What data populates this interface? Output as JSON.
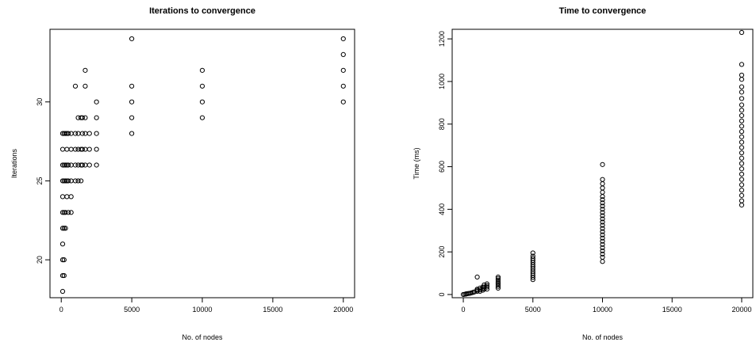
{
  "chart_data": [
    {
      "type": "scatter",
      "title": "Iterations to convergence",
      "xlabel": "No. of nodes",
      "ylabel": "Iterations",
      "xlim": [
        -800,
        20800
      ],
      "ylim": [
        17.6,
        34.6
      ],
      "xticks": [
        0,
        5000,
        10000,
        15000,
        20000
      ],
      "yticks": [
        20,
        25,
        30
      ],
      "grid": false,
      "points": [
        [
          100,
          18
        ],
        [
          100,
          19
        ],
        [
          100,
          20
        ],
        [
          100,
          21
        ],
        [
          100,
          22
        ],
        [
          100,
          23
        ],
        [
          100,
          24
        ],
        [
          100,
          25
        ],
        [
          100,
          26
        ],
        [
          100,
          27
        ],
        [
          100,
          28
        ],
        [
          200,
          19
        ],
        [
          200,
          20
        ],
        [
          200,
          22
        ],
        [
          200,
          23
        ],
        [
          200,
          25
        ],
        [
          200,
          26
        ],
        [
          200,
          28
        ],
        [
          300,
          22
        ],
        [
          300,
          23
        ],
        [
          300,
          25
        ],
        [
          300,
          26
        ],
        [
          300,
          28
        ],
        [
          400,
          24
        ],
        [
          400,
          25
        ],
        [
          400,
          26
        ],
        [
          400,
          27
        ],
        [
          400,
          28
        ],
        [
          500,
          23
        ],
        [
          500,
          25
        ],
        [
          500,
          26
        ],
        [
          500,
          28
        ],
        [
          700,
          23
        ],
        [
          700,
          24
        ],
        [
          700,
          25
        ],
        [
          700,
          26
        ],
        [
          700,
          27
        ],
        [
          700,
          28
        ],
        [
          1000,
          25
        ],
        [
          1000,
          26
        ],
        [
          1000,
          27
        ],
        [
          1000,
          28
        ],
        [
          1000,
          31
        ],
        [
          1200,
          25
        ],
        [
          1200,
          26
        ],
        [
          1200,
          27
        ],
        [
          1200,
          28
        ],
        [
          1200,
          29
        ],
        [
          1400,
          25
        ],
        [
          1400,
          26
        ],
        [
          1400,
          27
        ],
        [
          1400,
          29
        ],
        [
          1500,
          26
        ],
        [
          1500,
          27
        ],
        [
          1500,
          28
        ],
        [
          1500,
          29
        ],
        [
          1700,
          26
        ],
        [
          1700,
          27
        ],
        [
          1700,
          28
        ],
        [
          1700,
          29
        ],
        [
          1700,
          31
        ],
        [
          1700,
          32
        ],
        [
          2000,
          26
        ],
        [
          2000,
          27
        ],
        [
          2000,
          28
        ],
        [
          2500,
          26
        ],
        [
          2500,
          27
        ],
        [
          2500,
          28
        ],
        [
          2500,
          29
        ],
        [
          2500,
          30
        ],
        [
          5000,
          28
        ],
        [
          5000,
          29
        ],
        [
          5000,
          30
        ],
        [
          5000,
          31
        ],
        [
          5000,
          34
        ],
        [
          10000,
          29
        ],
        [
          10000,
          30
        ],
        [
          10000,
          31
        ],
        [
          10000,
          32
        ],
        [
          20000,
          30
        ],
        [
          20000,
          31
        ],
        [
          20000,
          32
        ],
        [
          20000,
          33
        ],
        [
          20000,
          34
        ]
      ]
    },
    {
      "type": "scatter",
      "title": "Time to convergence",
      "xlabel": "No. of nodes",
      "ylabel": "Time (ms)",
      "xlim": [
        -800,
        20800
      ],
      "ylim": [
        -15,
        1245
      ],
      "xticks": [
        0,
        5000,
        10000,
        15000,
        20000
      ],
      "yticks": [
        0,
        200,
        400,
        600,
        800,
        1000,
        1200
      ],
      "grid": false,
      "points": [
        [
          0,
          0
        ],
        [
          100,
          1
        ],
        [
          200,
          2
        ],
        [
          200,
          3
        ],
        [
          300,
          4
        ],
        [
          400,
          5
        ],
        [
          500,
          6
        ],
        [
          600,
          8
        ],
        [
          700,
          10
        ],
        [
          800,
          12
        ],
        [
          1000,
          15
        ],
        [
          1000,
          20
        ],
        [
          1000,
          25
        ],
        [
          1000,
          82
        ],
        [
          1200,
          15
        ],
        [
          1200,
          22
        ],
        [
          1200,
          30
        ],
        [
          1400,
          20
        ],
        [
          1400,
          28
        ],
        [
          1400,
          35
        ],
        [
          1500,
          25
        ],
        [
          1500,
          35
        ],
        [
          1500,
          45
        ],
        [
          1700,
          25
        ],
        [
          1700,
          35
        ],
        [
          1700,
          42
        ],
        [
          1700,
          50
        ],
        [
          2500,
          30
        ],
        [
          2500,
          38
        ],
        [
          2500,
          45
        ],
        [
          2500,
          52
        ],
        [
          2500,
          60
        ],
        [
          2500,
          68
        ],
        [
          2500,
          75
        ],
        [
          2500,
          82
        ],
        [
          5000,
          70
        ],
        [
          5000,
          80
        ],
        [
          5000,
          90
        ],
        [
          5000,
          100
        ],
        [
          5000,
          110
        ],
        [
          5000,
          120
        ],
        [
          5000,
          130
        ],
        [
          5000,
          140
        ],
        [
          5000,
          150
        ],
        [
          5000,
          160
        ],
        [
          5000,
          170
        ],
        [
          5000,
          180
        ],
        [
          5000,
          195
        ],
        [
          10000,
          155
        ],
        [
          10000,
          175
        ],
        [
          10000,
          190
        ],
        [
          10000,
          205
        ],
        [
          10000,
          220
        ],
        [
          10000,
          235
        ],
        [
          10000,
          250
        ],
        [
          10000,
          265
        ],
        [
          10000,
          280
        ],
        [
          10000,
          295
        ],
        [
          10000,
          310
        ],
        [
          10000,
          325
        ],
        [
          10000,
          340
        ],
        [
          10000,
          355
        ],
        [
          10000,
          370
        ],
        [
          10000,
          385
        ],
        [
          10000,
          400
        ],
        [
          10000,
          415
        ],
        [
          10000,
          430
        ],
        [
          10000,
          445
        ],
        [
          10000,
          460
        ],
        [
          10000,
          480
        ],
        [
          10000,
          500
        ],
        [
          10000,
          520
        ],
        [
          10000,
          540
        ],
        [
          10000,
          610
        ],
        [
          20000,
          420
        ],
        [
          20000,
          440
        ],
        [
          20000,
          465
        ],
        [
          20000,
          490
        ],
        [
          20000,
          515
        ],
        [
          20000,
          540
        ],
        [
          20000,
          565
        ],
        [
          20000,
          590
        ],
        [
          20000,
          615
        ],
        [
          20000,
          640
        ],
        [
          20000,
          665
        ],
        [
          20000,
          690
        ],
        [
          20000,
          715
        ],
        [
          20000,
          740
        ],
        [
          20000,
          765
        ],
        [
          20000,
          790
        ],
        [
          20000,
          815
        ],
        [
          20000,
          840
        ],
        [
          20000,
          865
        ],
        [
          20000,
          890
        ],
        [
          20000,
          920
        ],
        [
          20000,
          950
        ],
        [
          20000,
          975
        ],
        [
          20000,
          1010
        ],
        [
          20000,
          1030
        ],
        [
          20000,
          1080
        ],
        [
          20000,
          1230
        ]
      ]
    }
  ]
}
